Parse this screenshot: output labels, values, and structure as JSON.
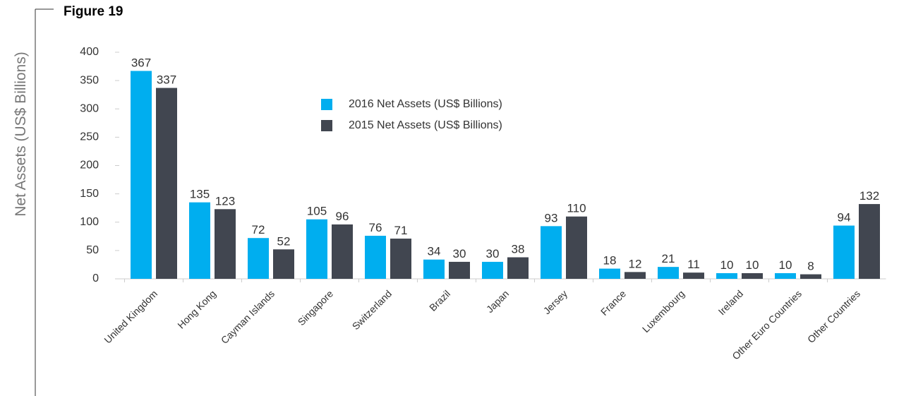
{
  "chart_data": {
    "type": "bar",
    "title": "Figure 19",
    "y_label": "Net Assets (US$ Billions)",
    "categories": [
      "United Kingdom",
      "Hong Kong",
      "Cayman Islands",
      "Singapore",
      "Switzerland",
      "Brazil",
      "Japan",
      "Jersey",
      "France",
      "Luxembourg",
      "Ireland",
      "Other Euro Countries",
      "Other Countries"
    ],
    "series": [
      {
        "name": "2016 Net Assets (US$ Billions)",
        "color": "#00aeef",
        "values": [
          367,
          135,
          72,
          105,
          76,
          34,
          30,
          93,
          18,
          21,
          10,
          10,
          94
        ]
      },
      {
        "name": "2015 Net Assets (US$ Billions)",
        "color": "#414650",
        "values": [
          337,
          123,
          52,
          96,
          71,
          30,
          38,
          110,
          12,
          11,
          10,
          8,
          132
        ]
      }
    ],
    "ylim": [
      0,
      400
    ],
    "yticks": [
      0,
      50,
      100,
      150,
      200,
      250,
      300,
      350,
      400
    ],
    "legend": "top"
  }
}
